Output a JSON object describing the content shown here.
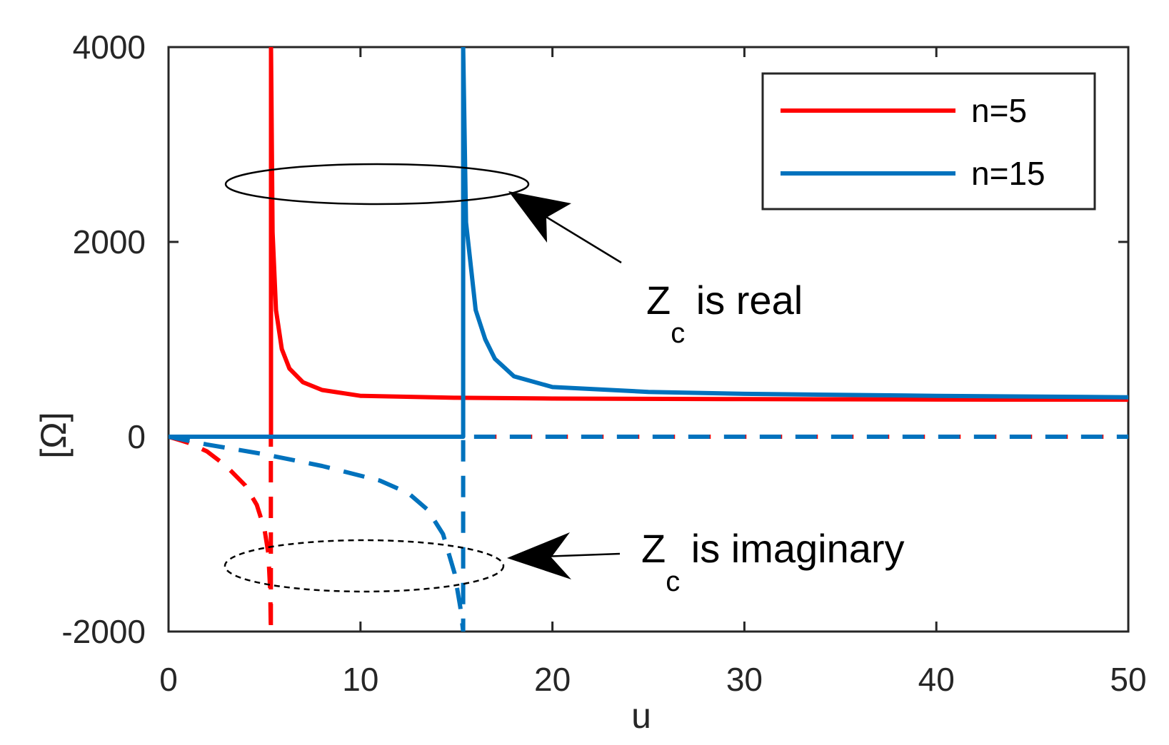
{
  "chart_data": {
    "type": "line",
    "xlabel": "u",
    "ylabel": "[Ω]",
    "xlim": [
      0,
      50
    ],
    "ylim": [
      -2000,
      4000
    ],
    "xticks": [
      "0",
      "10",
      "20",
      "30",
      "40",
      "50"
    ],
    "yticks": [
      "-2000",
      "0",
      "2000",
      "4000"
    ],
    "grid": false,
    "legend_position": "top-right",
    "colors": {
      "n5": "#ff0000",
      "n15": "#0072bd"
    },
    "series": [
      {
        "name": "n=5",
        "color": "#ff0000",
        "real": {
          "style": "solid",
          "x": [
            0,
            5.2,
            5.34,
            5.34,
            5.36,
            5.42,
            5.6,
            5.9,
            6.3,
            7,
            8,
            10,
            15,
            20,
            30,
            40,
            50
          ],
          "y": [
            0,
            0,
            0,
            4000,
            3500,
            2100,
            1300,
            900,
            700,
            560,
            480,
            420,
            400,
            392,
            386,
            382,
            380
          ]
        },
        "imag": {
          "style": "dashed",
          "x": [
            0,
            1,
            2,
            3,
            4,
            4.6,
            5,
            5.2,
            5.3,
            5.33,
            5.33,
            6,
            10,
            20,
            30,
            40,
            50
          ],
          "y": [
            0,
            -60,
            -150,
            -300,
            -500,
            -700,
            -950,
            -1200,
            -1600,
            -2000,
            0,
            0,
            0,
            0,
            0,
            0,
            0
          ]
        }
      },
      {
        "name": "n=15",
        "color": "#0072bd",
        "real": {
          "style": "solid",
          "x": [
            0,
            15.2,
            15.35,
            15.35,
            15.5,
            16,
            16.5,
            17,
            18,
            20,
            25,
            30,
            40,
            50
          ],
          "y": [
            0,
            0,
            0,
            4000,
            2200,
            1300,
            1000,
            800,
            620,
            510,
            460,
            440,
            420,
            405
          ]
        },
        "imag": {
          "style": "dashed",
          "x": [
            0,
            2,
            5,
            8,
            11,
            12.5,
            13.5,
            14.3,
            14.9,
            15.2,
            15.35,
            15.35,
            16,
            20,
            30,
            40,
            50
          ],
          "y": [
            0,
            -80,
            -180,
            -300,
            -450,
            -580,
            -750,
            -1000,
            -1400,
            -1750,
            -2000,
            0,
            0,
            0,
            0,
            0,
            0
          ]
        }
      }
    ],
    "annotations": [
      {
        "main": "Z",
        "sub": "c",
        "rest": " is real"
      },
      {
        "main": "Z",
        "sub": "c",
        "rest": " is imaginary"
      }
    ]
  }
}
